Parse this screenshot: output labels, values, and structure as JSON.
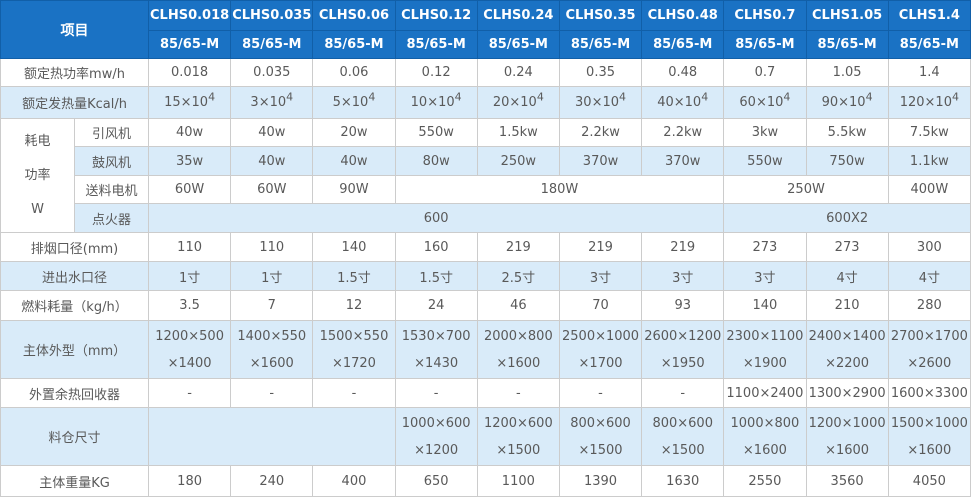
{
  "colors": {
    "header_bg": "#1a72c4",
    "header_divider": "#115fa8",
    "row_alt_bg": "#d9ebf9",
    "row_bg": "#ffffff",
    "border": "#cccccc",
    "header_text": "#ffffff",
    "body_text": "#595959"
  },
  "table": {
    "corner_label": "项目",
    "models": [
      "CLHS0.018",
      "CLHS0.035",
      "CLHS0.06",
      "CLHS0.12",
      "CLHS0.24",
      "CLHS0.35",
      "CLHS0.48",
      "CLHS0.7",
      "CLHS1.05",
      "CLHS1.4"
    ],
    "sub_headers": [
      "85/65-M",
      "85/65-M",
      "85/65-M",
      "85/65-M",
      "85/65-M",
      "85/65-M",
      "85/65-M",
      "85/65-M",
      "85/65-M",
      "85/65-M"
    ],
    "rows": [
      {
        "label": "额定热功率mw/h",
        "alt": false,
        "cells": [
          {
            "t": "0.018"
          },
          {
            "t": "0.035"
          },
          {
            "t": "0.06"
          },
          {
            "t": "0.12"
          },
          {
            "t": "0.24"
          },
          {
            "t": "0.35"
          },
          {
            "t": "0.48"
          },
          {
            "t": "0.7"
          },
          {
            "t": "1.05"
          },
          {
            "t": "1.4"
          }
        ]
      },
      {
        "label": "额定发热量Kcal/h",
        "alt": true,
        "cells": [
          {
            "t": "15×10",
            "sup": "4"
          },
          {
            "t": "3×10",
            "sup": "4"
          },
          {
            "t": "5×10",
            "sup": "4"
          },
          {
            "t": "10×10",
            "sup": "4"
          },
          {
            "t": "20×10",
            "sup": "4"
          },
          {
            "t": "30×10",
            "sup": "4"
          },
          {
            "t": "40×10",
            "sup": "4"
          },
          {
            "t": "60×10",
            "sup": "4"
          },
          {
            "t": "90×10",
            "sup": "4"
          },
          {
            "t": "120×10",
            "sup": "4"
          }
        ]
      },
      {
        "group_lines": [
          "耗电",
          "功率",
          "W"
        ],
        "group_rowspan": 4,
        "sublabel": "引风机",
        "alt": false,
        "cells": [
          {
            "t": "40w"
          },
          {
            "t": "40w"
          },
          {
            "t": "20w"
          },
          {
            "t": "550w"
          },
          {
            "t": "1.5kw"
          },
          {
            "t": "2.2kw"
          },
          {
            "t": "2.2kw"
          },
          {
            "t": "3kw"
          },
          {
            "t": "5.5kw"
          },
          {
            "t": "7.5kw"
          }
        ]
      },
      {
        "sublabel": "鼓风机",
        "alt": true,
        "cells": [
          {
            "t": "35w"
          },
          {
            "t": "40w"
          },
          {
            "t": "40w"
          },
          {
            "t": "80w"
          },
          {
            "t": "250w"
          },
          {
            "t": "370w"
          },
          {
            "t": "370w"
          },
          {
            "t": "550w"
          },
          {
            "t": "750w"
          },
          {
            "t": "1.1kw"
          }
        ]
      },
      {
        "sublabel": "送料电机",
        "alt": false,
        "cells": [
          {
            "t": "60W"
          },
          {
            "t": "60W"
          },
          {
            "t": "90W"
          },
          {
            "t": "180W",
            "span": 4
          },
          {
            "t": "250W",
            "span": 2
          },
          {
            "t": "400W"
          }
        ]
      },
      {
        "sublabel": "点火器",
        "alt": true,
        "cells": [
          {
            "t": "600",
            "span": 7
          },
          {
            "t": "600X2",
            "span": 3
          }
        ]
      },
      {
        "label": "排烟口径(mm)",
        "alt": false,
        "cells": [
          {
            "t": "110"
          },
          {
            "t": "110"
          },
          {
            "t": "140"
          },
          {
            "t": "160"
          },
          {
            "t": "219"
          },
          {
            "t": "219"
          },
          {
            "t": "219"
          },
          {
            "t": "273"
          },
          {
            "t": "273"
          },
          {
            "t": "300"
          }
        ]
      },
      {
        "label": "进出水口径",
        "alt": true,
        "cells": [
          {
            "t": "1寸"
          },
          {
            "t": "1寸"
          },
          {
            "t": "1.5寸"
          },
          {
            "t": "1.5寸"
          },
          {
            "t": "2.5寸"
          },
          {
            "t": "3寸"
          },
          {
            "t": "3寸"
          },
          {
            "t": "3寸"
          },
          {
            "t": "4寸"
          },
          {
            "t": "4寸"
          }
        ]
      },
      {
        "label": "燃料耗量（kg/h）",
        "alt": false,
        "cells": [
          {
            "t": "3.5"
          },
          {
            "t": "7"
          },
          {
            "t": "12"
          },
          {
            "t": "24"
          },
          {
            "t": "46"
          },
          {
            "t": "70"
          },
          {
            "t": "93"
          },
          {
            "t": "140"
          },
          {
            "t": "210"
          },
          {
            "t": "280"
          }
        ]
      },
      {
        "label": "主体外型（mm）",
        "alt": true,
        "cells": [
          {
            "lines": [
              "1200×500",
              "×1400"
            ]
          },
          {
            "lines": [
              "1400×550",
              "×1600"
            ]
          },
          {
            "lines": [
              "1500×550",
              "×1720"
            ]
          },
          {
            "lines": [
              "1530×700",
              "×1430"
            ]
          },
          {
            "lines": [
              "2000×800",
              "×1600"
            ]
          },
          {
            "lines": [
              "2500×1000",
              "×1700"
            ]
          },
          {
            "lines": [
              "2600×1200",
              "×1950"
            ]
          },
          {
            "lines": [
              "2300×1100",
              "×1900"
            ]
          },
          {
            "lines": [
              "2400×1400",
              "×2200"
            ]
          },
          {
            "lines": [
              "2700×1700",
              "×2600"
            ]
          }
        ]
      },
      {
        "label": "外置余热回收器",
        "alt": false,
        "cells": [
          {
            "t": "-"
          },
          {
            "t": "-"
          },
          {
            "t": "-"
          },
          {
            "t": "-"
          },
          {
            "t": "-"
          },
          {
            "t": "-"
          },
          {
            "t": "-"
          },
          {
            "t": "1100×2400"
          },
          {
            "t": "1300×2900"
          },
          {
            "t": "1600×3300"
          }
        ]
      },
      {
        "label": "料仓尺寸",
        "alt": true,
        "cells": [
          {
            "t": "",
            "span": 3
          },
          {
            "lines": [
              "1000×600",
              "×1200"
            ]
          },
          {
            "lines": [
              "1200×600",
              "×1500"
            ]
          },
          {
            "lines": [
              "800×600",
              "×1500"
            ]
          },
          {
            "lines": [
              "800×600",
              "×1500"
            ]
          },
          {
            "lines": [
              "1000×800",
              "×1600"
            ]
          },
          {
            "lines": [
              "1200×1000",
              "×1600"
            ]
          },
          {
            "lines": [
              "1500×1000",
              "×1600"
            ]
          }
        ]
      },
      {
        "label": "主体重量KG",
        "alt": false,
        "cells": [
          {
            "t": "180"
          },
          {
            "t": "240"
          },
          {
            "t": "400"
          },
          {
            "t": "650"
          },
          {
            "t": "1100"
          },
          {
            "t": "1390"
          },
          {
            "t": "1630"
          },
          {
            "t": "2550"
          },
          {
            "t": "3560"
          },
          {
            "t": "4050"
          }
        ]
      }
    ]
  }
}
